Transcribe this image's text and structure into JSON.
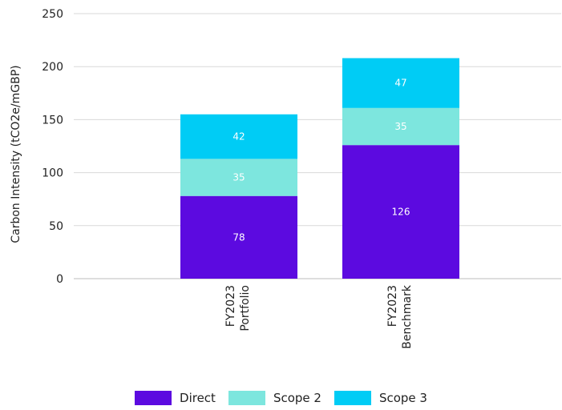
{
  "chart_data": {
    "type": "bar",
    "stacked": true,
    "categories": [
      [
        "FY2023",
        "Portfolio"
      ],
      [
        "FY2023",
        "Benchmark"
      ]
    ],
    "series": [
      {
        "name": "Direct",
        "values": [
          78,
          126
        ],
        "color": "#5C0AE0"
      },
      {
        "name": "Scope 2",
        "values": [
          35,
          35
        ],
        "color": "#7DE6DE"
      },
      {
        "name": "Scope 3",
        "values": [
          42,
          47
        ],
        "color": "#00CCF5"
      }
    ],
    "ylabel": "Carbon Intensity (tCO2e/mGBP)",
    "ylim": [
      0,
      250
    ],
    "yticks": [
      0,
      50,
      100,
      150,
      200,
      250
    ],
    "grid": true,
    "legend": "bottom"
  }
}
